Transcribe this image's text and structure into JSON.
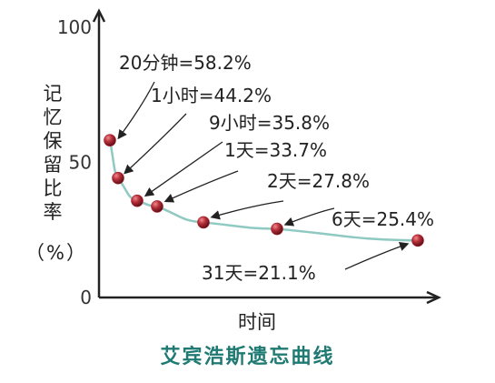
{
  "chart_data": {
    "type": "line",
    "title": "艾宾浩斯遗忘曲线",
    "xlabel": "时间",
    "ylabel_chars": [
      "记",
      "忆",
      "保",
      "留",
      "比",
      "率"
    ],
    "ylabel_unit": "（%）",
    "ylim": [
      0,
      100
    ],
    "yticks": [
      "0",
      "50",
      "100"
    ],
    "grid": false,
    "series": [
      {
        "points": [
          {
            "label": "20分钟=58.2%",
            "value": 58.2
          },
          {
            "label": "1小时=44.2%",
            "value": 44.2
          },
          {
            "label": "9小时=35.8%",
            "value": 35.8
          },
          {
            "label": "1天=33.7%",
            "value": 33.7
          },
          {
            "label": "2天=27.8%",
            "value": 27.8
          },
          {
            "label": "6天=25.4%",
            "value": 25.4
          },
          {
            "label": "31天=21.1%",
            "value": 21.1
          }
        ]
      }
    ],
    "colors": {
      "line": "#8ec9c2",
      "marker": "#a8232f",
      "axis": "#222222",
      "title": "#1e7a72"
    }
  }
}
